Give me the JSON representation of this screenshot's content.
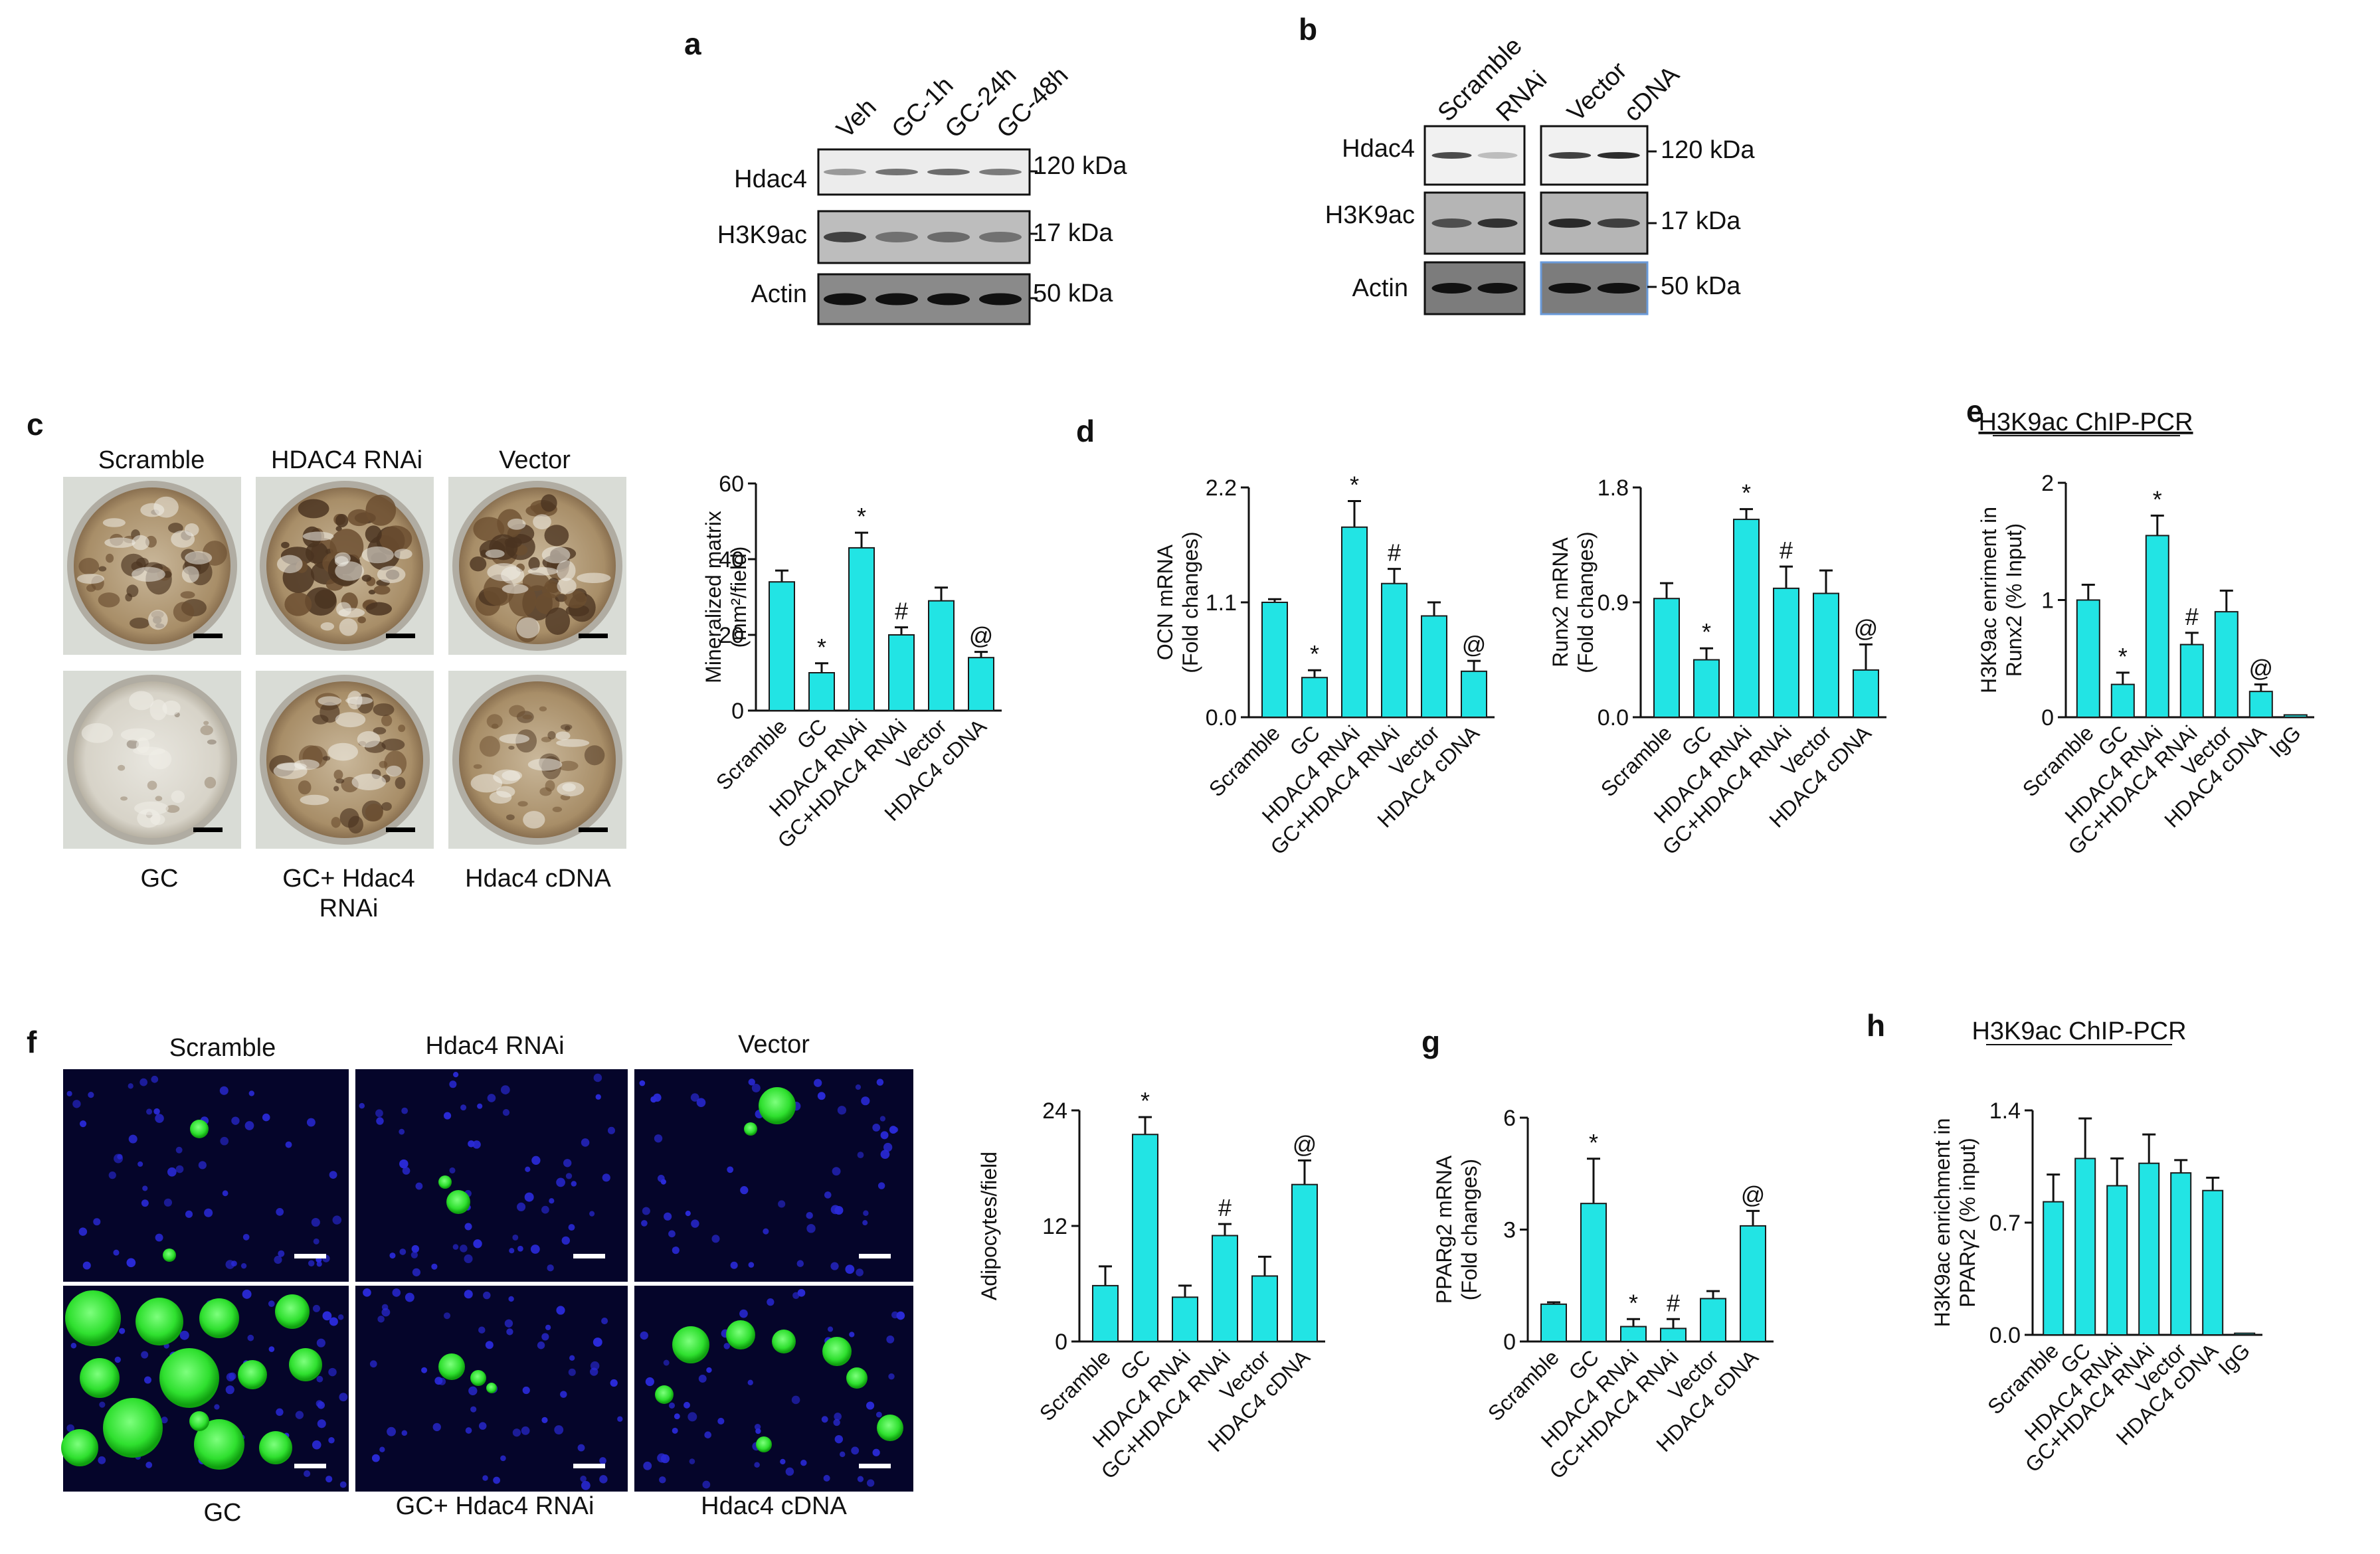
{
  "panels": {
    "a": "a",
    "b": "b",
    "c": "c",
    "d": "d",
    "e": "e",
    "f": "f",
    "g": "g",
    "h": "h"
  },
  "blot_a": {
    "lanes": [
      "Veh",
      "GC-1h",
      "GC-24h",
      "GC-48h"
    ],
    "rows": [
      "Hdac4",
      "H3K9ac",
      "Actin"
    ],
    "sizes": [
      "120 kDa",
      "17 kDa",
      "50 kDa"
    ]
  },
  "blot_b": {
    "lanes": [
      "Scramble",
      "RNAi",
      "Vector",
      "cDNA"
    ],
    "rows": [
      "Hdac4",
      "H3K9ac",
      "Actin"
    ],
    "sizes": [
      "120 kDa",
      "17 kDa",
      "50 kDa"
    ]
  },
  "panel_c_images": {
    "top": [
      "Scramble",
      "HDAC4 RNAi",
      "Vector"
    ],
    "bottom": [
      "GC",
      "GC+ Hdac4",
      "Hdac4 cDNA"
    ],
    "bottom_line2": "RNAi"
  },
  "panel_e_title": "H3K9ac ChIP-PCR",
  "panel_h_title": "H3K9ac ChIP-PCR",
  "panel_f_images": {
    "top": [
      "Scramble",
      "Hdac4 RNAi",
      "Vector"
    ],
    "bottom": [
      "GC",
      "GC+ Hdac4 RNAi",
      "Hdac4 cDNA"
    ]
  },
  "colors": {
    "bar": "#22e4e4",
    "bar_edge": "#1a1a1a",
    "mineral": "#8a6a45",
    "fluor_green": "#44ee44",
    "fluor_blue": "#2222cc"
  },
  "chart_data": [
    {
      "id": "c",
      "type": "bar",
      "ylabel": "Mineralized matrix",
      "ylabel2": "(mm²/field)",
      "ylim": [
        0,
        60
      ],
      "yticks": [
        "0",
        "20",
        "40",
        "60"
      ],
      "categories": [
        "Scramble",
        "GC",
        "HDAC4 RNAi",
        "GC+HDAC4 RNAi",
        "Vector",
        "HDAC4 cDNA"
      ],
      "values": [
        34,
        10,
        43,
        20,
        29,
        14
      ],
      "errors": [
        3,
        2.5,
        4,
        2,
        3.5,
        1.5
      ],
      "marks": [
        "",
        "*",
        "*",
        "#",
        "",
        "@"
      ]
    },
    {
      "id": "d1",
      "type": "bar",
      "ylabel": "OCN mRNA",
      "ylabel2": "(Fold changes)",
      "ylim": [
        0,
        2.2
      ],
      "yticks": [
        "0.0",
        "1.1",
        "2.2"
      ],
      "categories": [
        "Scramble",
        "GC",
        "HDAC4 RNAi",
        "GC+HDAC4 RNAi",
        "Vector",
        "HDAC4 cDNA"
      ],
      "values": [
        1.1,
        0.38,
        1.82,
        1.28,
        0.97,
        0.44
      ],
      "errors": [
        0.03,
        0.07,
        0.25,
        0.14,
        0.13,
        0.1
      ],
      "marks": [
        "",
        "*",
        "*",
        "#",
        "",
        "@"
      ]
    },
    {
      "id": "d2",
      "type": "bar",
      "ylabel": "Runx2 mRNA",
      "ylabel2": "(Fold changes)",
      "ylim": [
        0,
        1.8
      ],
      "yticks": [
        "0.0",
        "0.9",
        "1.8"
      ],
      "categories": [
        "Scramble",
        "GC",
        "HDAC4 RNAi",
        "GC+HDAC4 RNAi",
        "Vector",
        "HDAC4 cDNA"
      ],
      "values": [
        0.93,
        0.45,
        1.55,
        1.01,
        0.97,
        0.37
      ],
      "errors": [
        0.12,
        0.09,
        0.08,
        0.17,
        0.18,
        0.2
      ],
      "marks": [
        "",
        "*",
        "*",
        "#",
        "",
        "@"
      ]
    },
    {
      "id": "e",
      "type": "bar",
      "ylabel": "H3K9ac enriment in",
      "ylabel2": "Runx2 (% Input)",
      "ylim": [
        0,
        2
      ],
      "yticks": [
        "0",
        "1",
        "2"
      ],
      "categories": [
        "Scramble",
        "GC",
        "HDAC4 RNAi",
        "GC+HDAC4 RNAi",
        "Vector",
        "HDAC4 cDNA",
        "IgG"
      ],
      "values": [
        1.0,
        0.28,
        1.55,
        0.62,
        0.9,
        0.22,
        0.02
      ],
      "errors": [
        0.13,
        0.1,
        0.17,
        0.1,
        0.18,
        0.06,
        0
      ],
      "marks": [
        "",
        "*",
        "*",
        "#",
        "",
        "@",
        ""
      ]
    },
    {
      "id": "f",
      "type": "bar",
      "ylabel": "Adipocytes/field",
      "ylabel2": "",
      "ylim": [
        0,
        24
      ],
      "yticks": [
        "0",
        "12",
        "24"
      ],
      "categories": [
        "Scramble",
        "GC",
        "HDAC4 RNAi",
        "GC+HDAC4 RNAi",
        "Vector",
        "HDAC4 cDNA"
      ],
      "values": [
        5.8,
        21.5,
        4.6,
        11,
        6.8,
        16.3
      ],
      "errors": [
        2,
        1.8,
        1.2,
        1.2,
        2,
        2.5
      ],
      "marks": [
        "",
        "*",
        "",
        "#",
        "",
        "@"
      ]
    },
    {
      "id": "g",
      "type": "bar",
      "ylabel": "PPARg2 mRNA",
      "ylabel2": "(Fold changes)",
      "ylim": [
        0,
        6
      ],
      "yticks": [
        "0",
        "3",
        "6"
      ],
      "categories": [
        "Scramble",
        "GC",
        "HDAC4 RNAi",
        "GC+HDAC4 RNAi",
        "Vector",
        "HDAC4 cDNA"
      ],
      "values": [
        1.0,
        3.7,
        0.4,
        0.35,
        1.15,
        3.1
      ],
      "errors": [
        0.05,
        1.2,
        0.2,
        0.25,
        0.2,
        0.4
      ],
      "marks": [
        "",
        "*",
        "*",
        "#",
        "",
        "@"
      ]
    },
    {
      "id": "h",
      "type": "bar",
      "ylabel": "H3K9ac enrichment in",
      "ylabel2": "PPARγ2 (% input)",
      "ylim": [
        0,
        1.4
      ],
      "yticks": [
        "0.0",
        "0.7",
        "1.4"
      ],
      "categories": [
        "Scramble",
        "GC",
        "HDAC4 RNAi",
        "GC+HDAC4 RNAi",
        "Vector",
        "HDAC4 cDNA",
        "IgG"
      ],
      "values": [
        0.83,
        1.1,
        0.93,
        1.07,
        1.01,
        0.9,
        0.01
      ],
      "errors": [
        0.17,
        0.25,
        0.17,
        0.18,
        0.08,
        0.08,
        0
      ],
      "marks": [
        "",
        "",
        "",
        "",
        "",
        "",
        ""
      ]
    }
  ]
}
